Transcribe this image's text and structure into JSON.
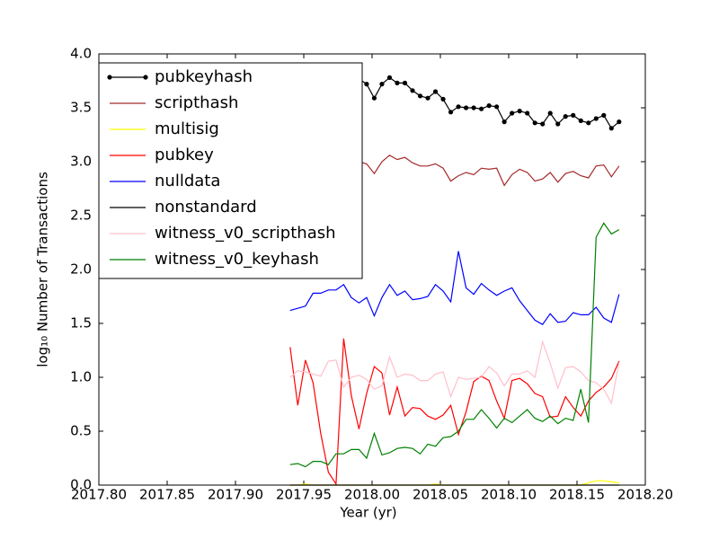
{
  "chart_data": {
    "type": "line",
    "xlabel": "Year (yr)",
    "ylabel": "log₁₀ Number of Transactions",
    "x": [
      2017.94,
      2017.9456,
      2017.9512,
      2017.9568,
      2017.9624,
      2017.968,
      2017.9736,
      2017.9792,
      2017.9848,
      2017.9904,
      2017.996,
      2018.0016,
      2018.0072,
      2018.0128,
      2018.0184,
      2018.024,
      2018.0296,
      2018.0352,
      2018.0408,
      2018.0464,
      2018.052,
      2018.0576,
      2018.0632,
      2018.0688,
      2018.0744,
      2018.08,
      2018.0856,
      2018.0912,
      2018.0968,
      2018.1024,
      2018.108,
      2018.1136,
      2018.1192,
      2018.1248,
      2018.1304,
      2018.136,
      2018.1416,
      2018.1472,
      2018.1528,
      2018.1584,
      2018.164,
      2018.1696,
      2018.1752,
      2018.1808
    ],
    "series": [
      {
        "name": "pubkeyhash",
        "color": "#000000",
        "marker": true,
        "values": [
          3.8,
          3.78,
          3.82,
          3.79,
          3.77,
          3.8,
          3.76,
          3.78,
          3.75,
          3.77,
          3.72,
          3.59,
          3.72,
          3.78,
          3.73,
          3.73,
          3.66,
          3.61,
          3.59,
          3.65,
          3.58,
          3.46,
          3.51,
          3.5,
          3.5,
          3.49,
          3.52,
          3.51,
          3.37,
          3.45,
          3.47,
          3.45,
          3.36,
          3.35,
          3.45,
          3.35,
          3.42,
          3.43,
          3.38,
          3.36,
          3.4,
          3.43,
          3.31,
          3.37
        ]
      },
      {
        "name": "scripthash",
        "color": "#a52a2a",
        "values": [
          3.0,
          3.02,
          2.98,
          3.01,
          3.03,
          2.99,
          3.0,
          3.02,
          2.97,
          3.0,
          2.98,
          2.89,
          3.0,
          3.06,
          3.02,
          3.04,
          2.99,
          2.96,
          2.96,
          2.98,
          2.94,
          2.82,
          2.87,
          2.9,
          2.88,
          2.94,
          2.93,
          2.94,
          2.78,
          2.88,
          2.93,
          2.9,
          2.82,
          2.84,
          2.9,
          2.81,
          2.89,
          2.91,
          2.87,
          2.85,
          2.96,
          2.97,
          2.86,
          2.96
        ]
      },
      {
        "name": "multisig",
        "color": "#ffff00",
        "values": [
          0,
          0,
          0.01,
          0,
          0,
          0,
          0,
          0,
          0,
          0,
          0,
          0,
          0,
          0,
          0,
          0,
          0,
          0,
          0,
          0.01,
          0,
          0,
          0,
          0,
          0,
          0,
          0,
          0,
          0,
          0,
          0,
          0,
          0,
          0,
          0,
          0,
          0,
          0,
          0,
          0.02,
          0.04,
          0.04,
          0.03,
          0.02
        ]
      },
      {
        "name": "pubkey",
        "color": "#ff0000",
        "values": [
          1.28,
          0.74,
          1.16,
          0.95,
          0.48,
          0.12,
          0.01,
          1.36,
          0.83,
          0.52,
          0.85,
          1.1,
          1.04,
          0.65,
          0.91,
          0.64,
          0.72,
          0.71,
          0.64,
          0.61,
          0.65,
          0.74,
          0.47,
          0.68,
          0.96,
          1.01,
          0.97,
          0.78,
          0.62,
          0.97,
          0.99,
          0.94,
          0.85,
          0.82,
          0.63,
          0.64,
          0.82,
          0.72,
          0.64,
          0.78,
          0.86,
          0.91,
          0.99,
          1.15
        ]
      },
      {
        "name": "nulldata",
        "color": "#0000ff",
        "values": [
          1.62,
          1.64,
          1.66,
          1.78,
          1.78,
          1.81,
          1.81,
          1.86,
          1.74,
          1.69,
          1.74,
          1.57,
          1.74,
          1.86,
          1.76,
          1.8,
          1.72,
          1.73,
          1.75,
          1.86,
          1.8,
          1.7,
          2.17,
          1.83,
          1.77,
          1.87,
          1.81,
          1.76,
          1.8,
          1.83,
          1.71,
          1.62,
          1.53,
          1.49,
          1.59,
          1.51,
          1.52,
          1.6,
          1.58,
          1.58,
          1.65,
          1.55,
          1.51,
          1.77
        ]
      },
      {
        "name": "nonstandard",
        "color": "#000000",
        "values": [
          0,
          0,
          0,
          0,
          0,
          0,
          0,
          0,
          0,
          0,
          0,
          0,
          0,
          0,
          0,
          0,
          0,
          0,
          0,
          0,
          0,
          0,
          0,
          0,
          0,
          0,
          0,
          0,
          0,
          0,
          0,
          0,
          0,
          0,
          0,
          0,
          0,
          0,
          0,
          0,
          0,
          0,
          0,
          0
        ]
      },
      {
        "name": "witness_v0_scripthash",
        "color": "#ffc0cb",
        "values": [
          1.0,
          1.06,
          1.05,
          1.03,
          1.01,
          1.15,
          1.16,
          0.91,
          1.0,
          1.02,
          0.98,
          0.89,
          0.92,
          1.19,
          1.0,
          1.03,
          1.02,
          0.97,
          0.97,
          1.03,
          1.05,
          0.82,
          1.0,
          0.98,
          0.99,
          1.0,
          1.1,
          1.04,
          0.92,
          1.03,
          1.03,
          1.06,
          1.0,
          1.33,
          1.13,
          0.9,
          1.09,
          1.1,
          1.05,
          0.97,
          0.95,
          0.89,
          0.76,
          1.14
        ]
      },
      {
        "name": "witness_v0_keyhash",
        "color": "#008000",
        "values": [
          0.19,
          0.2,
          0.17,
          0.22,
          0.22,
          0.19,
          0.29,
          0.29,
          0.33,
          0.33,
          0.25,
          0.48,
          0.28,
          0.3,
          0.34,
          0.35,
          0.34,
          0.29,
          0.38,
          0.36,
          0.44,
          0.45,
          0.5,
          0.61,
          0.61,
          0.7,
          0.62,
          0.53,
          0.62,
          0.58,
          0.64,
          0.7,
          0.62,
          0.59,
          0.64,
          0.57,
          0.62,
          0.6,
          0.89,
          0.58,
          2.3,
          2.43,
          2.33,
          2.37
        ]
      }
    ],
    "xlim": [
      2017.8,
      2018.2
    ],
    "xticks": [
      {
        "value": 2017.8,
        "label": "2017.80"
      },
      {
        "value": 2017.85,
        "label": "2017.85"
      },
      {
        "value": 2017.9,
        "label": "2017.90"
      },
      {
        "value": 2017.95,
        "label": "2017.95"
      },
      {
        "value": 2018.0,
        "label": "2018.00"
      },
      {
        "value": 2018.05,
        "label": "2018.05"
      },
      {
        "value": 2018.1,
        "label": "2018.10"
      },
      {
        "value": 2018.15,
        "label": "2018.15"
      },
      {
        "value": 2018.2,
        "label": "2018.20"
      }
    ],
    "ylim": [
      0,
      4
    ],
    "yticks": [
      {
        "value": 0,
        "label": "0.0"
      },
      {
        "value": 0.5,
        "label": "0.5"
      },
      {
        "value": 1,
        "label": "1.0"
      },
      {
        "value": 1.5,
        "label": "1.5"
      },
      {
        "value": 2,
        "label": "2.0"
      },
      {
        "value": 2.5,
        "label": "2.5"
      },
      {
        "value": 3,
        "label": "3.0"
      },
      {
        "value": 3.5,
        "label": "3.5"
      },
      {
        "value": 4,
        "label": "4.0"
      }
    ],
    "legend": "upper left"
  }
}
